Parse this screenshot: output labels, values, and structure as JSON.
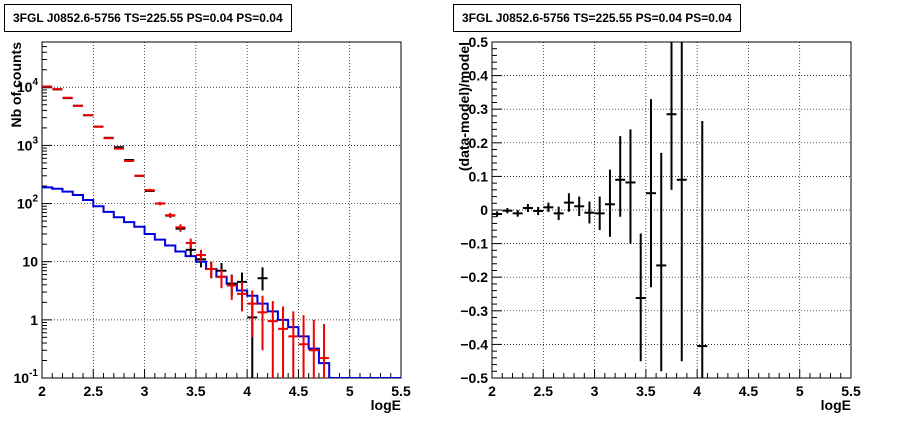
{
  "colors": {
    "data": "#000000",
    "model_points": "#ee0000",
    "model_line": "#0000dd",
    "grid": "#000000",
    "background": "#ffffff"
  },
  "chart_data": [
    {
      "type": "line",
      "title": "3FGL J0852.6-5756 TS=225.55 PS=0.04 PS=0.04",
      "xlabel": "logE",
      "ylabel": "Nb of counts",
      "xlim": [
        2,
        5.5
      ],
      "ylim": [
        0.1,
        60000
      ],
      "yscale": "log",
      "grid": true,
      "x_ticks": [
        "2",
        "2.5",
        "3",
        "3.5",
        "4",
        "4.5",
        "5",
        "5.5"
      ],
      "y_ticks": [
        {
          "v": 0.1,
          "label": "10",
          "exp": "-1"
        },
        {
          "v": 1,
          "label": "1",
          "exp": ""
        },
        {
          "v": 10,
          "label": "10",
          "exp": ""
        },
        {
          "v": 100,
          "label": "10",
          "exp": "2"
        },
        {
          "v": 1000,
          "label": "10",
          "exp": "3"
        },
        {
          "v": 10000,
          "label": "10",
          "exp": "4"
        }
      ],
      "series": [
        {
          "kind": "errorbar",
          "x": [
            2.05,
            2.15,
            2.25,
            2.35,
            2.45,
            2.55,
            2.65,
            2.75,
            2.85,
            2.95,
            3.05,
            3.15,
            3.25,
            3.35,
            3.45,
            3.55,
            3.65,
            3.75,
            3.85,
            3.95,
            4.05,
            4.15
          ],
          "y": [
            10000,
            9200,
            6500,
            4800,
            3300,
            2100,
            1350,
            930,
            560,
            300,
            165,
            100,
            62,
            37,
            16,
            11,
            7.5,
            7,
            4.2,
            4.5,
            1.1,
            5.2
          ],
          "ylo": [
            9800,
            9000,
            6300,
            4650,
            3200,
            2030,
            1300,
            900,
            540,
            288,
            158,
            95,
            57,
            33,
            12.5,
            8,
            5.2,
            4.5,
            2.6,
            2.6,
            0.1,
            3.2
          ],
          "yhi": [
            10200,
            9400,
            6700,
            4950,
            3400,
            2170,
            1400,
            960,
            580,
            312,
            172,
            105,
            67,
            41,
            20,
            14,
            10,
            9.5,
            6,
            6.5,
            2.2,
            8
          ]
        },
        {
          "kind": "errorbar",
          "x": [
            2.05,
            2.15,
            2.25,
            2.35,
            2.45,
            2.55,
            2.65,
            2.75,
            2.85,
            2.95,
            3.05,
            3.15,
            3.25,
            3.35,
            3.45,
            3.55,
            3.65,
            3.75,
            3.85,
            3.95,
            4.05,
            4.15,
            4.25,
            4.35,
            4.45,
            4.55,
            4.65,
            4.75
          ],
          "y": [
            10300,
            9300,
            6600,
            4800,
            3300,
            2100,
            1330,
            880,
            540,
            300,
            170,
            100,
            63,
            39,
            21,
            13,
            7.5,
            5.5,
            3.9,
            2.8,
            1.9,
            1.35,
            0.95,
            0.7,
            0.52,
            0.38,
            0.3,
            0.22
          ],
          "ylo": [
            10100,
            9100,
            6450,
            4680,
            3210,
            2050,
            1290,
            850,
            520,
            288,
            160,
            93,
            57,
            34,
            17,
            10,
            5.2,
            3.5,
            2.2,
            1.4,
            0.5,
            0.3,
            0.1,
            0.1,
            0.1,
            0.1,
            0.1,
            0.1
          ],
          "yhi": [
            10500,
            9500,
            6750,
            4920,
            3400,
            2150,
            1370,
            910,
            560,
            312,
            180,
            107,
            69,
            44,
            25,
            16,
            10,
            7.5,
            5.8,
            4.5,
            3.2,
            2.6,
            2.1,
            1.7,
            1.4,
            1.2,
            1.0,
            0.85
          ]
        },
        {
          "kind": "step",
          "edges": [
            2.0,
            2.1,
            2.2,
            2.3,
            2.4,
            2.5,
            2.6,
            2.7,
            2.8,
            2.9,
            3.0,
            3.1,
            3.2,
            3.3,
            3.4,
            3.5,
            3.6,
            3.7,
            3.8,
            3.9,
            4.0,
            4.1,
            4.2,
            4.3,
            4.4,
            4.5,
            4.6,
            4.7,
            4.8,
            4.9,
            5.0,
            5.1,
            5.2,
            5.3,
            5.4,
            5.5
          ],
          "values": [
            190,
            180,
            160,
            140,
            115,
            90,
            72,
            58,
            48,
            40,
            30,
            24,
            19,
            15,
            12.5,
            10,
            7.5,
            5.5,
            4.2,
            3.2,
            2.6,
            1.9,
            1.4,
            1.0,
            0.75,
            0.52,
            0.32,
            0.18,
            0.1,
            0.1,
            0.1,
            0.1,
            0.1,
            0.1,
            0.1
          ]
        }
      ]
    },
    {
      "type": "scatter",
      "title": "3FGL J0852.6-5756 TS=225.55 PS=0.04 PS=0.04",
      "xlabel": "logE",
      "ylabel": "(data-model)/model",
      "xlim": [
        2,
        5.5
      ],
      "ylim": [
        -0.5,
        0.5
      ],
      "grid": true,
      "x_ticks": [
        "2",
        "2.5",
        "3",
        "3.5",
        "4",
        "4.5",
        "5",
        "5.5"
      ],
      "y_ticks": [
        "-0.5",
        "-0.4",
        "-0.3",
        "-0.2",
        "-0.1",
        "0",
        "0.1",
        "0.2",
        "0.3",
        "0.4",
        "0.5"
      ],
      "series": [
        {
          "kind": "errorbar",
          "x": [
            2.05,
            2.15,
            2.25,
            2.35,
            2.45,
            2.55,
            2.65,
            2.75,
            2.85,
            2.95,
            3.05,
            3.15,
            3.25,
            3.35,
            3.45,
            3.55,
            3.65,
            3.75,
            3.85,
            3.95,
            4.05
          ],
          "y": [
            -0.012,
            -0.002,
            -0.01,
            0.006,
            -0.003,
            0.008,
            -0.01,
            0.022,
            0.011,
            -0.008,
            -0.01,
            0.017,
            0.09,
            0.082,
            -0.262,
            0.05,
            -0.165,
            0.285,
            0.09,
            null,
            -0.405
          ],
          "ylo": [
            -0.02,
            -0.01,
            -0.02,
            -0.006,
            -0.015,
            -0.006,
            -0.03,
            -0.005,
            -0.018,
            -0.04,
            -0.06,
            -0.08,
            -0.02,
            -0.1,
            -0.45,
            -0.23,
            -0.48,
            0.06,
            -0.45,
            null,
            -0.5
          ],
          "yhi": [
            -0.004,
            0.006,
            0.0,
            0.018,
            0.009,
            0.022,
            0.01,
            0.05,
            0.04,
            0.025,
            0.04,
            0.12,
            0.22,
            0.24,
            -0.07,
            0.33,
            0.17,
            0.5,
            0.5,
            null,
            0.265
          ]
        }
      ]
    }
  ]
}
